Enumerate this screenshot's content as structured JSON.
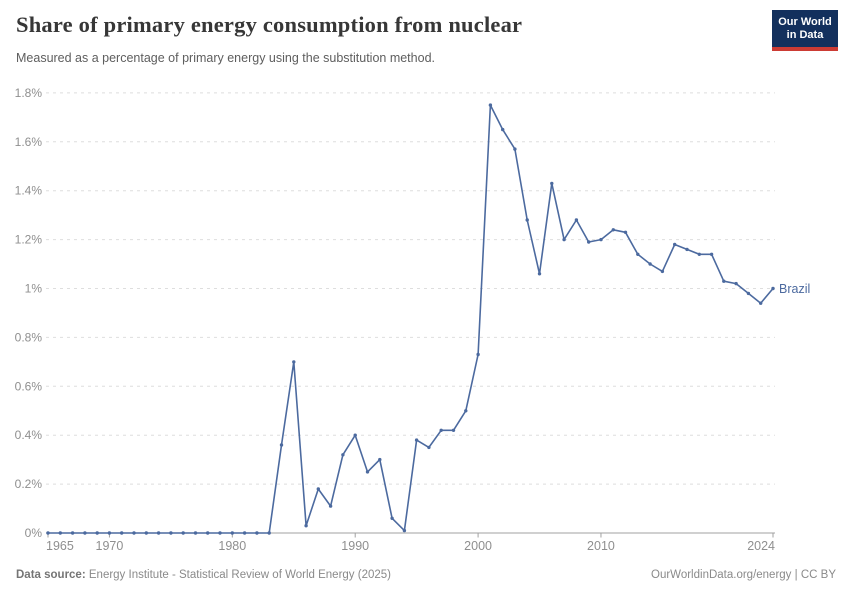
{
  "header": {
    "title": "Share of primary energy consumption from nuclear",
    "subtitle": "Measured as a percentage of primary energy using the substitution method.",
    "logo": {
      "line1": "Our World",
      "line2": "in Data"
    }
  },
  "colors": {
    "series_blue": "#4c6a9f",
    "grid": "#dedede",
    "axis": "#a1a1a1",
    "tick_label": "#8f8f8f",
    "logo_bg": "#13305d",
    "logo_bar": "#cc3b34"
  },
  "chart_data": {
    "type": "line",
    "title": "Share of primary energy consumption from nuclear",
    "unit": "%",
    "xlim": [
      1965,
      2024
    ],
    "ylim": [
      0,
      1.8
    ],
    "grid": "dashed-horizontal",
    "x_ticks": [
      "1965",
      "1970",
      "1980",
      "1990",
      "2000",
      "2010",
      "2024"
    ],
    "x_tick_years": [
      1965,
      1970,
      1980,
      1990,
      2000,
      2010,
      2024
    ],
    "y_ticks": [
      0,
      0.2,
      0.4,
      0.6,
      0.8,
      1.0,
      1.2,
      1.4,
      1.6,
      1.8
    ],
    "y_tick_labels": [
      "0%",
      "0.2%",
      "0.4%",
      "0.6%",
      "0.8%",
      "1%",
      "1.2%",
      "1.4%",
      "1.6%",
      "1.8%"
    ],
    "legend_position": "end-of-line-label",
    "series": [
      {
        "name": "Brazil",
        "color": "#4c6a9f",
        "x": [
          1965,
          1966,
          1967,
          1968,
          1969,
          1970,
          1971,
          1972,
          1973,
          1974,
          1975,
          1976,
          1977,
          1978,
          1979,
          1980,
          1981,
          1982,
          1983,
          1984,
          1985,
          1986,
          1987,
          1988,
          1989,
          1990,
          1991,
          1992,
          1993,
          1994,
          1995,
          1996,
          1997,
          1998,
          1999,
          2000,
          2001,
          2002,
          2003,
          2004,
          2005,
          2006,
          2007,
          2008,
          2009,
          2010,
          2011,
          2012,
          2013,
          2014,
          2015,
          2016,
          2017,
          2018,
          2019,
          2020,
          2021,
          2022,
          2023,
          2024
        ],
        "y": [
          0,
          0,
          0,
          0,
          0,
          0,
          0,
          0,
          0,
          0,
          0,
          0,
          0,
          0,
          0,
          0,
          0,
          0,
          0,
          0.36,
          0.7,
          0.03,
          0.18,
          0.11,
          0.32,
          0.4,
          0.25,
          0.3,
          0.06,
          0.01,
          0.38,
          0.35,
          0.42,
          0.42,
          0.5,
          0.73,
          1.75,
          1.65,
          1.57,
          1.28,
          1.06,
          1.43,
          1.2,
          1.28,
          1.19,
          1.2,
          1.24,
          1.23,
          1.14,
          1.1,
          1.07,
          1.18,
          1.16,
          1.14,
          1.14,
          1.03,
          1.02,
          0.98,
          0.94,
          1.0
        ]
      }
    ]
  },
  "footer": {
    "source_label": "Data source:",
    "source_text": "Energy Institute - Statistical Review of World Energy (2025)",
    "credit_link": "OurWorldinData.org/energy",
    "separator": "|",
    "license": "CC BY"
  }
}
